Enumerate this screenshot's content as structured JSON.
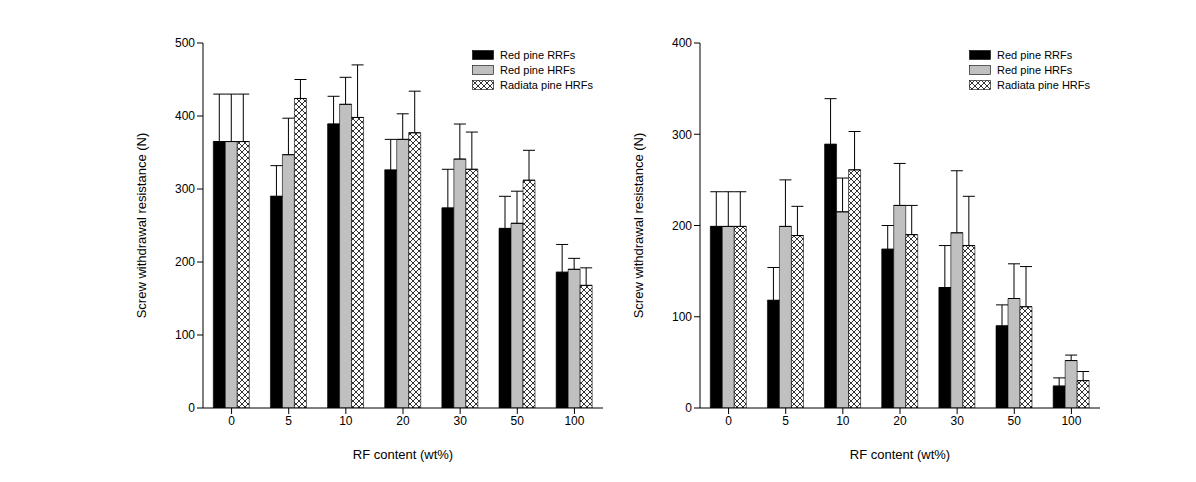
{
  "chart_data": [
    {
      "type": "bar",
      "categories": [
        "0",
        "5",
        "10",
        "20",
        "30",
        "50",
        "100"
      ],
      "x_label": "RF content (wt%)",
      "y_label": "Screw withdrawal resistance (N)",
      "ylim": [
        0,
        500
      ],
      "yticks": [
        0,
        100,
        200,
        300,
        400,
        500
      ],
      "legend": "upper right",
      "series": [
        {
          "name": "Red pine RRFs",
          "color": "#000000",
          "values": [
            365,
            290,
            389,
            326,
            274,
            246,
            186
          ],
          "errors": [
            65,
            42,
            38,
            42,
            53,
            44,
            38
          ]
        },
        {
          "name": "Red pine HRFs",
          "color": "#c0c0c0",
          "values": [
            365,
            347,
            416,
            368,
            341,
            253,
            190
          ],
          "errors": [
            65,
            50,
            37,
            35,
            48,
            44,
            15
          ]
        },
        {
          "name": "Radiata pine HRFs",
          "color": "#ffffff",
          "values": [
            365,
            424,
            398,
            377,
            327,
            312,
            168
          ],
          "errors": [
            65,
            26,
            72,
            57,
            51,
            41,
            24
          ]
        }
      ]
    },
    {
      "type": "bar",
      "categories": [
        "0",
        "5",
        "10",
        "20",
        "30",
        "50",
        "100"
      ],
      "x_label": "RF content (wt%)",
      "y_label": "Screw withdrawal resistance (N)",
      "ylim": [
        0,
        400
      ],
      "yticks": [
        0,
        100,
        200,
        300,
        400
      ],
      "legend": "upper right",
      "series": [
        {
          "name": "Red pine RRFs",
          "color": "#000000",
          "values": [
            199,
            118,
            289,
            174,
            132,
            90,
            24
          ],
          "errors": [
            38,
            36,
            50,
            26,
            46,
            23,
            9
          ]
        },
        {
          "name": "Red pine HRFs",
          "color": "#c0c0c0",
          "values": [
            199,
            199,
            215,
            222,
            192,
            120,
            52
          ],
          "errors": [
            38,
            51,
            37,
            46,
            68,
            38,
            6
          ]
        },
        {
          "name": "Radiata pine HRFs",
          "color": "#ffffff",
          "values": [
            199,
            189,
            261,
            190,
            178,
            111,
            30
          ],
          "errors": [
            38,
            32,
            42,
            32,
            54,
            44,
            10
          ]
        }
      ]
    }
  ]
}
